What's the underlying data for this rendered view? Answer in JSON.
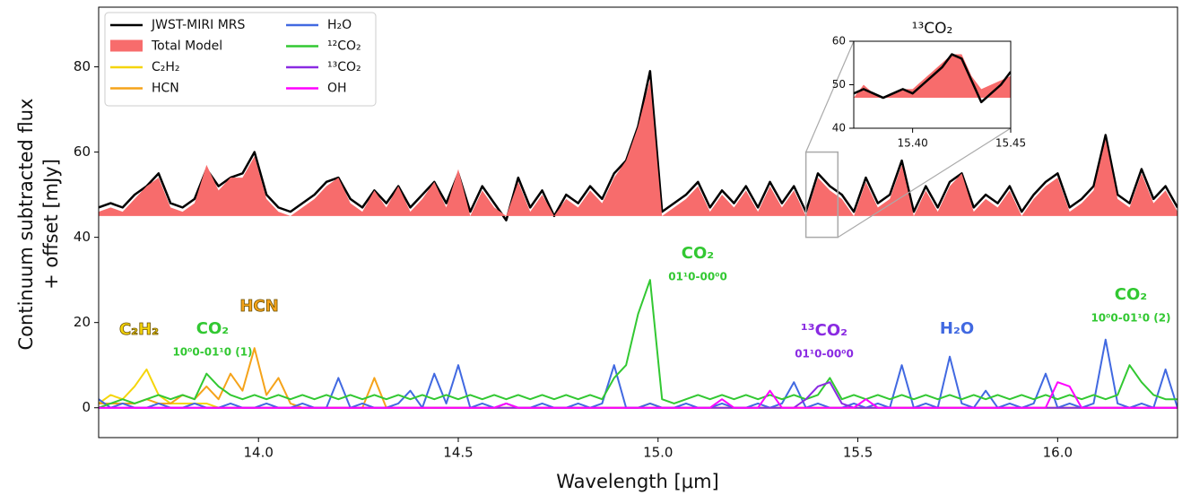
{
  "chart_data": [
    {
      "type": "line",
      "xlabel": "Wavelength [μm]",
      "ylabel": [
        "Continuum subtracted flux",
        "+ offset [mJy]"
      ],
      "xlim": [
        13.6,
        16.3
      ],
      "ylim": [
        -7,
        94
      ],
      "xticks": [
        {
          "value": 14.0,
          "label": "14.0"
        },
        {
          "value": 14.5,
          "label": "14.5"
        },
        {
          "value": 15.0,
          "label": "15.0"
        },
        {
          "value": 15.5,
          "label": "15.5"
        },
        {
          "value": 16.0,
          "label": "16.0"
        }
      ],
      "yticks": [
        0,
        20,
        40,
        60,
        80
      ],
      "legend": "upper left",
      "legend_columns": 2,
      "x": [
        13.6,
        13.63,
        13.66,
        13.69,
        13.72,
        13.75,
        13.78,
        13.81,
        13.84,
        13.87,
        13.9,
        13.93,
        13.96,
        13.99,
        14.02,
        14.05,
        14.08,
        14.11,
        14.14,
        14.17,
        14.2,
        14.23,
        14.26,
        14.29,
        14.32,
        14.35,
        14.38,
        14.41,
        14.44,
        14.47,
        14.5,
        14.53,
        14.56,
        14.59,
        14.62,
        14.65,
        14.68,
        14.71,
        14.74,
        14.77,
        14.8,
        14.83,
        14.86,
        14.89,
        14.92,
        14.95,
        14.98,
        15.01,
        15.04,
        15.07,
        15.1,
        15.13,
        15.16,
        15.19,
        15.22,
        15.25,
        15.28,
        15.31,
        15.34,
        15.37,
        15.4,
        15.43,
        15.46,
        15.49,
        15.52,
        15.55,
        15.58,
        15.61,
        15.64,
        15.67,
        15.7,
        15.73,
        15.76,
        15.79,
        15.82,
        15.85,
        15.88,
        15.91,
        15.94,
        15.97,
        16.0,
        16.03,
        16.06,
        16.09,
        16.12,
        16.15,
        16.18,
        16.21,
        16.24,
        16.27,
        16.3
      ],
      "series": [
        {
          "name": "JWST-MIRI MRS",
          "color": "#000000",
          "style": "line",
          "width": 2.5,
          "values": [
            47,
            48,
            47,
            50,
            52,
            55,
            48,
            47,
            49,
            56,
            52,
            54,
            55,
            60,
            50,
            47,
            46,
            48,
            50,
            53,
            54,
            49,
            47,
            51,
            48,
            52,
            47,
            50,
            53,
            48,
            55,
            46,
            52,
            48,
            44,
            54,
            47,
            51,
            45,
            50,
            48,
            52,
            49,
            55,
            58,
            66,
            79,
            46,
            48,
            50,
            53,
            47,
            51,
            48,
            52,
            47,
            53,
            48,
            52,
            46,
            55,
            52,
            50,
            46,
            54,
            48,
            50,
            58,
            46,
            52,
            47,
            53,
            55,
            47,
            50,
            48,
            52,
            46,
            50,
            53,
            55,
            47,
            49,
            52,
            64,
            50,
            48,
            56,
            49,
            52,
            47
          ]
        },
        {
          "name": "Total Model",
          "color": "#f76c6c",
          "style": "area",
          "values": [
            46,
            47,
            46,
            49,
            52,
            54,
            47,
            46,
            48,
            57,
            51,
            54,
            54,
            59,
            49,
            46,
            45,
            47,
            49,
            52,
            54,
            48,
            46,
            51,
            47,
            52,
            46,
            49,
            53,
            47,
            56,
            45,
            51,
            47,
            45,
            53,
            46,
            50,
            45,
            49,
            47,
            51,
            48,
            54,
            58,
            66,
            77,
            45,
            47,
            49,
            52,
            46,
            50,
            47,
            51,
            46,
            52,
            47,
            51,
            45,
            54,
            51,
            49,
            45,
            53,
            47,
            49,
            57,
            45,
            51,
            46,
            52,
            55,
            46,
            49,
            47,
            51,
            45,
            49,
            52,
            54,
            46,
            48,
            51,
            63,
            49,
            47,
            55,
            48,
            51,
            46
          ]
        },
        {
          "name": "C₂H₂",
          "color": "#f5d50b",
          "style": "line",
          "width": 2,
          "values": [
            1,
            3,
            2,
            5,
            9,
            3,
            1,
            1,
            1,
            1,
            0,
            0,
            0,
            0,
            0,
            0,
            0,
            0,
            0,
            0,
            0,
            0,
            0,
            0,
            0,
            0,
            0,
            0,
            0,
            0,
            0,
            0,
            0,
            0,
            0,
            0,
            0,
            0,
            0,
            0,
            0,
            0,
            0,
            0,
            0,
            0,
            0,
            0,
            0,
            0,
            0,
            0,
            0,
            0,
            0,
            0,
            0,
            0,
            0,
            0,
            0,
            0,
            0,
            0,
            0,
            0,
            0,
            0,
            0,
            0,
            0,
            0,
            0,
            0,
            0,
            0,
            0,
            0,
            0,
            0,
            0,
            0,
            0,
            0,
            0,
            0,
            0,
            0,
            0,
            0,
            0
          ]
        },
        {
          "name": "HCN",
          "color": "#f5a31a",
          "style": "line",
          "width": 2,
          "values": [
            1,
            1,
            1,
            1,
            2,
            1,
            1,
            3,
            2,
            5,
            2,
            8,
            4,
            14,
            3,
            7,
            1,
            0,
            0,
            0,
            0,
            0,
            0,
            7,
            0,
            0,
            0,
            0,
            0,
            0,
            0,
            0,
            0,
            0,
            0,
            0,
            0,
            0,
            0,
            0,
            0,
            0,
            0,
            0,
            0,
            0,
            1,
            0,
            0,
            0,
            0,
            0,
            0,
            0,
            0,
            0,
            0,
            0,
            0,
            0,
            0,
            0,
            0,
            0,
            0,
            0,
            0,
            0,
            0,
            0,
            0,
            0,
            0,
            0,
            0,
            0,
            0,
            0,
            0,
            0,
            0,
            0,
            0,
            0,
            0,
            0,
            0,
            0,
            0,
            0,
            0
          ]
        },
        {
          "name": "H₂O",
          "color": "#4169e1",
          "style": "line",
          "width": 2,
          "values": [
            2,
            0,
            1,
            0,
            0,
            1,
            0,
            0,
            1,
            0,
            0,
            1,
            0,
            0,
            1,
            0,
            0,
            1,
            0,
            0,
            7,
            0,
            1,
            0,
            0,
            1,
            4,
            0,
            8,
            1,
            10,
            0,
            1,
            0,
            1,
            0,
            0,
            1,
            0,
            0,
            1,
            0,
            1,
            10,
            0,
            0,
            1,
            0,
            0,
            1,
            0,
            0,
            1,
            0,
            0,
            1,
            0,
            1,
            6,
            0,
            1,
            0,
            0,
            1,
            0,
            1,
            0,
            10,
            0,
            1,
            0,
            12,
            1,
            0,
            4,
            0,
            1,
            0,
            1,
            8,
            0,
            1,
            0,
            1,
            16,
            1,
            0,
            1,
            0,
            9,
            0
          ]
        },
        {
          "name": "¹²CO₂",
          "color": "#32c832",
          "style": "line",
          "width": 2,
          "values": [
            0,
            1,
            2,
            1,
            2,
            3,
            2,
            3,
            2,
            8,
            5,
            3,
            2,
            3,
            2,
            3,
            2,
            3,
            2,
            3,
            2,
            3,
            2,
            3,
            2,
            3,
            2,
            3,
            2,
            3,
            2,
            3,
            2,
            3,
            2,
            3,
            2,
            3,
            2,
            3,
            2,
            3,
            2,
            7,
            10,
            22,
            30,
            2,
            1,
            2,
            3,
            2,
            3,
            2,
            3,
            2,
            3,
            2,
            3,
            2,
            3,
            7,
            2,
            3,
            2,
            3,
            2,
            3,
            2,
            3,
            2,
            3,
            2,
            3,
            2,
            3,
            2,
            3,
            2,
            3,
            2,
            3,
            2,
            3,
            2,
            3,
            10,
            6,
            3,
            2,
            2
          ]
        },
        {
          "name": "¹³CO₂",
          "color": "#8a2be2",
          "style": "line",
          "width": 2,
          "values": [
            0,
            0,
            0,
            0,
            0,
            0,
            0,
            0,
            0,
            0,
            0,
            0,
            0,
            0,
            0,
            0,
            0,
            0,
            0,
            0,
            0,
            0,
            0,
            0,
            0,
            0,
            0,
            0,
            0,
            0,
            0,
            0,
            0,
            0,
            0,
            0,
            0,
            0,
            0,
            0,
            0,
            0,
            0,
            0,
            0,
            0,
            0,
            0,
            0,
            0,
            0,
            0,
            0,
            0,
            0,
            0,
            0,
            0,
            0,
            2,
            5,
            6,
            1,
            0,
            0,
            0,
            0,
            0,
            0,
            0,
            0,
            0,
            0,
            0,
            0,
            0,
            0,
            0,
            0,
            0,
            0,
            0,
            0,
            0,
            0,
            0,
            0,
            0,
            0,
            0,
            0
          ]
        },
        {
          "name": "OH",
          "color": "#ff00ff",
          "style": "line",
          "width": 2,
          "values": [
            0,
            0,
            0,
            0,
            0,
            0,
            0,
            0,
            0,
            0,
            0,
            0,
            0,
            0,
            0,
            0,
            0,
            0,
            0,
            0,
            0,
            0,
            0,
            0,
            0,
            0,
            0,
            0,
            0,
            0,
            0,
            0,
            0,
            0,
            1,
            0,
            0,
            0,
            0,
            0,
            0,
            0,
            0,
            0,
            0,
            0,
            0,
            0,
            0,
            0,
            0,
            0,
            2,
            0,
            0,
            0,
            4,
            0,
            0,
            0,
            0,
            0,
            0,
            0,
            2,
            0,
            0,
            0,
            0,
            0,
            0,
            0,
            0,
            0,
            0,
            0,
            0,
            0,
            0,
            0,
            6,
            5,
            0,
            0,
            0,
            0,
            0,
            0,
            0,
            0,
            0
          ]
        }
      ],
      "annotations": [
        {
          "text": "C₂H₂",
          "color": "#f5d50b",
          "outline": true
        },
        {
          "text": "CO₂",
          "sub": "10⁰0-01¹0 (1)",
          "color": "#32c832"
        },
        {
          "text": "HCN",
          "color": "#f5a31a",
          "outline": true
        },
        {
          "text": "CO₂",
          "sub": "01¹0-00⁰0",
          "color": "#32c832"
        },
        {
          "text": "¹³CO₂",
          "sub": "01¹0-00⁰0",
          "color": "#8a2be2"
        },
        {
          "text": "H₂O",
          "color": "#4169e1"
        },
        {
          "text": "CO₂",
          "sub": "10⁰0-01¹0 (2)",
          "color": "#32c832"
        }
      ]
    },
    {
      "type": "line",
      "title": "¹³CO₂",
      "xlim": [
        15.37,
        15.45
      ],
      "ylim": [
        40,
        60
      ],
      "xticks": [
        {
          "value": 15.4,
          "label": "15.40"
        },
        {
          "value": 15.45,
          "label": "15.45"
        }
      ],
      "yticks": [
        40,
        50,
        60
      ],
      "x": [
        15.37,
        15.375,
        15.38,
        15.385,
        15.39,
        15.395,
        15.4,
        15.405,
        15.41,
        15.415,
        15.42,
        15.425,
        15.43,
        15.435,
        15.44,
        15.445,
        15.45
      ],
      "series": [
        {
          "color": "#f76c6c",
          "style": "area",
          "values": [
            47,
            50,
            48,
            47,
            48,
            49,
            49,
            51,
            53,
            55,
            57,
            57,
            52,
            49,
            50,
            51,
            52
          ]
        },
        {
          "color": "#000000",
          "style": "line",
          "width": 2.5,
          "values": [
            48,
            49,
            48,
            47,
            48,
            49,
            48,
            50,
            52,
            54,
            57,
            56,
            51,
            46,
            48,
            50,
            53
          ]
        }
      ]
    }
  ]
}
